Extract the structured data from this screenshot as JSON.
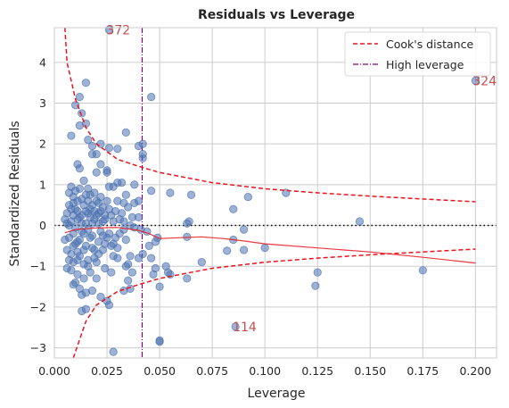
{
  "chart_data": {
    "type": "scatter",
    "title": "Residuals vs Leverage",
    "xlabel": "Leverage",
    "ylabel": "Standardized Residuals",
    "xlim": [
      0.0,
      0.21
    ],
    "ylim": [
      -3.25,
      4.85
    ],
    "xticks": [
      0.0,
      0.025,
      0.05,
      0.075,
      0.1,
      0.125,
      0.15,
      0.175,
      0.2
    ],
    "xtick_labels": [
      "0.000",
      "0.025",
      "0.050",
      "0.075",
      "0.100",
      "0.125",
      "0.150",
      "0.175",
      "0.200"
    ],
    "yticks": [
      -3,
      -2,
      -1,
      0,
      1,
      2,
      3,
      4
    ],
    "ytick_labels": [
      "−3",
      "−2",
      "−1",
      "0",
      "1",
      "2",
      "3",
      "4"
    ],
    "grid": true,
    "legend_position": "top-right",
    "legend": [
      "Cook's distance",
      "High leverage"
    ],
    "colors": {
      "points": "#4c72b0",
      "cooks": "#e8141e",
      "lowess": "#e8141e",
      "high_leverage": "#800080",
      "zero_line": "#000000",
      "annotation": "#c44e52",
      "grid": "#cccccc"
    },
    "high_leverage_x": 0.0417,
    "zero_line_y": 0,
    "cooks_distance_curves": {
      "upper": [
        [
          0.005,
          4.9
        ],
        [
          0.006,
          4.0
        ],
        [
          0.01,
          3.1
        ],
        [
          0.015,
          2.4
        ],
        [
          0.02,
          2.0
        ],
        [
          0.03,
          1.62
        ],
        [
          0.04,
          1.45
        ],
        [
          0.05,
          1.3
        ],
        [
          0.075,
          1.05
        ],
        [
          0.1,
          0.9
        ],
        [
          0.125,
          0.8
        ],
        [
          0.15,
          0.72
        ],
        [
          0.175,
          0.65
        ],
        [
          0.2,
          0.58
        ]
      ],
      "lower": [
        [
          0.009,
          -3.25
        ],
        [
          0.01,
          -3.1
        ],
        [
          0.015,
          -2.35
        ],
        [
          0.02,
          -1.95
        ],
        [
          0.03,
          -1.62
        ],
        [
          0.04,
          -1.45
        ],
        [
          0.05,
          -1.3
        ],
        [
          0.075,
          -1.05
        ],
        [
          0.1,
          -0.9
        ],
        [
          0.125,
          -0.8
        ],
        [
          0.15,
          -0.72
        ],
        [
          0.175,
          -0.65
        ],
        [
          0.2,
          -0.58
        ]
      ]
    },
    "lowess_curve": [
      [
        0.005,
        -0.18
      ],
      [
        0.01,
        -0.1
      ],
      [
        0.02,
        -0.06
      ],
      [
        0.03,
        -0.05
      ],
      [
        0.04,
        -0.12
      ],
      [
        0.045,
        -0.2
      ],
      [
        0.05,
        -0.32
      ],
      [
        0.06,
        -0.3
      ],
      [
        0.07,
        -0.28
      ],
      [
        0.08,
        -0.32
      ],
      [
        0.09,
        -0.38
      ],
      [
        0.1,
        -0.45
      ],
      [
        0.125,
        -0.55
      ],
      [
        0.15,
        -0.65
      ],
      [
        0.175,
        -0.78
      ],
      [
        0.2,
        -0.92
      ]
    ],
    "points": [
      [
        0.026,
        4.8
      ],
      [
        0.2,
        3.55
      ],
      [
        0.086,
        -2.48
      ],
      [
        0.015,
        3.5
      ],
      [
        0.046,
        3.15
      ],
      [
        0.012,
        3.15
      ],
      [
        0.01,
        2.95
      ],
      [
        0.013,
        2.75
      ],
      [
        0.015,
        2.5
      ],
      [
        0.012,
        2.45
      ],
      [
        0.008,
        2.2
      ],
      [
        0.016,
        2.1
      ],
      [
        0.018,
        1.95
      ],
      [
        0.022,
        2.0
      ],
      [
        0.034,
        2.28
      ],
      [
        0.026,
        1.9
      ],
      [
        0.03,
        1.88
      ],
      [
        0.04,
        1.95
      ],
      [
        0.042,
        2.0
      ],
      [
        0.042,
        1.75
      ],
      [
        0.042,
        1.65
      ],
      [
        0.018,
        1.75
      ],
      [
        0.02,
        1.75
      ],
      [
        0.011,
        1.5
      ],
      [
        0.012,
        1.4
      ],
      [
        0.02,
        1.3
      ],
      [
        0.022,
        1.5
      ],
      [
        0.025,
        1.35
      ],
      [
        0.025,
        1.3
      ],
      [
        0.026,
        0.95
      ],
      [
        0.028,
        0.95
      ],
      [
        0.03,
        1.05
      ],
      [
        0.032,
        1.05
      ],
      [
        0.038,
        1.0
      ],
      [
        0.04,
        0.6
      ],
      [
        0.046,
        0.85
      ],
      [
        0.055,
        0.8
      ],
      [
        0.065,
        0.75
      ],
      [
        0.085,
        0.4
      ],
      [
        0.092,
        0.7
      ],
      [
        0.11,
        0.8
      ],
      [
        0.145,
        0.1
      ],
      [
        0.064,
        0.1
      ],
      [
        0.063,
        0.05
      ],
      [
        0.09,
        -0.1
      ],
      [
        0.085,
        -0.35
      ],
      [
        0.09,
        -0.6
      ],
      [
        0.1,
        -0.55
      ],
      [
        0.082,
        -0.62
      ],
      [
        0.063,
        -0.28
      ],
      [
        0.07,
        -0.9
      ],
      [
        0.053,
        -1.0
      ],
      [
        0.055,
        -1.2
      ],
      [
        0.054,
        -1.15
      ],
      [
        0.047,
        -1.2
      ],
      [
        0.048,
        -1.05
      ],
      [
        0.046,
        -0.8
      ],
      [
        0.042,
        -0.7
      ],
      [
        0.04,
        -0.8
      ],
      [
        0.045,
        -0.5
      ],
      [
        0.048,
        -0.4
      ],
      [
        0.05,
        -1.5
      ],
      [
        0.063,
        -1.3
      ],
      [
        0.125,
        -1.15
      ],
      [
        0.124,
        -1.48
      ],
      [
        0.175,
        -1.1
      ],
      [
        0.035,
        -1.35
      ],
      [
        0.036,
        -1.55
      ],
      [
        0.033,
        -1.6
      ],
      [
        0.037,
        -1.15
      ],
      [
        0.034,
        -1.0
      ],
      [
        0.03,
        -0.8
      ],
      [
        0.028,
        -0.75
      ],
      [
        0.025,
        -1.85
      ],
      [
        0.026,
        -1.95
      ],
      [
        0.022,
        -1.75
      ],
      [
        0.018,
        -1.6
      ],
      [
        0.015,
        -1.65
      ],
      [
        0.013,
        -1.7
      ],
      [
        0.012,
        -1.55
      ],
      [
        0.013,
        -2.1
      ],
      [
        0.015,
        -2.05
      ],
      [
        0.028,
        -3.1
      ],
      [
        0.05,
        -2.82
      ],
      [
        0.05,
        -2.85
      ],
      [
        0.01,
        -1.4
      ],
      [
        0.008,
        -1.1
      ],
      [
        0.006,
        -1.05
      ],
      [
        0.009,
        -0.9
      ],
      [
        0.011,
        -0.85
      ],
      [
        0.014,
        -0.95
      ],
      [
        0.016,
        -1.0
      ],
      [
        0.019,
        -0.8
      ],
      [
        0.021,
        -0.7
      ],
      [
        0.023,
        -0.6
      ],
      [
        0.024,
        -0.45
      ],
      [
        0.027,
        -0.5
      ],
      [
        0.029,
        -0.3
      ],
      [
        0.031,
        -0.2
      ],
      [
        0.033,
        -0.1
      ],
      [
        0.036,
        0.0
      ],
      [
        0.038,
        -0.05
      ],
      [
        0.041,
        -0.1
      ],
      [
        0.044,
        -0.15
      ],
      [
        0.049,
        -0.3
      ],
      [
        0.007,
        0.8
      ],
      [
        0.009,
        0.7
      ],
      [
        0.011,
        0.6
      ],
      [
        0.012,
        0.9
      ],
      [
        0.014,
        1.1
      ],
      [
        0.016,
        0.9
      ],
      [
        0.017,
        0.75
      ],
      [
        0.019,
        0.8
      ],
      [
        0.021,
        0.55
      ],
      [
        0.023,
        0.45
      ],
      [
        0.025,
        0.6
      ],
      [
        0.027,
        0.25
      ],
      [
        0.029,
        0.35
      ],
      [
        0.031,
        0.15
      ],
      [
        0.033,
        0.1
      ],
      [
        0.035,
        0.45
      ],
      [
        0.037,
        0.2
      ],
      [
        0.006,
        0.3
      ],
      [
        0.007,
        -0.3
      ],
      [
        0.008,
        0.1
      ],
      [
        0.009,
        -0.2
      ],
      [
        0.01,
        0.4
      ],
      [
        0.011,
        -0.4
      ],
      [
        0.012,
        0.2
      ],
      [
        0.013,
        -0.15
      ],
      [
        0.014,
        0.5
      ],
      [
        0.015,
        -0.5
      ],
      [
        0.016,
        0.3
      ],
      [
        0.017,
        -0.3
      ],
      [
        0.018,
        0.05
      ],
      [
        0.019,
        -0.6
      ],
      [
        0.02,
        0.25
      ],
      [
        0.021,
        -0.4
      ],
      [
        0.022,
        0.35
      ],
      [
        0.023,
        -0.25
      ],
      [
        0.006,
        -0.6
      ],
      [
        0.007,
        0.5
      ],
      [
        0.008,
        -0.7
      ],
      [
        0.009,
        0.55
      ],
      [
        0.01,
        -0.45
      ],
      [
        0.011,
        0.15
      ],
      [
        0.012,
        -0.75
      ],
      [
        0.013,
        0.65
      ],
      [
        0.014,
        -0.2
      ],
      [
        0.015,
        0.05
      ],
      [
        0.016,
        -0.85
      ],
      [
        0.017,
        0.4
      ],
      [
        0.018,
        -0.55
      ],
      [
        0.005,
        0.15
      ],
      [
        0.005,
        -0.35
      ],
      [
        0.006,
        0.05
      ],
      [
        0.007,
        -0.85
      ],
      [
        0.008,
        0.95
      ],
      [
        0.009,
        0.25
      ],
      [
        0.01,
        -0.05
      ],
      [
        0.011,
        0.35
      ],
      [
        0.012,
        -0.35
      ],
      [
        0.013,
        0.25
      ],
      [
        0.014,
        -0.6
      ],
      [
        0.015,
        0.75
      ],
      [
        0.016,
        -0.1
      ],
      [
        0.017,
        0.2
      ],
      [
        0.018,
        -0.25
      ],
      [
        0.019,
        0.15
      ],
      [
        0.02,
        -0.9
      ],
      [
        0.021,
        0.05
      ],
      [
        0.022,
        -0.15
      ],
      [
        0.024,
        0.15
      ],
      [
        0.026,
        -0.2
      ],
      [
        0.028,
        0.1
      ],
      [
        0.03,
        -0.55
      ],
      [
        0.032,
        0.3
      ],
      [
        0.034,
        -0.35
      ],
      [
        0.036,
        -0.75
      ],
      [
        0.038,
        0.55
      ],
      [
        0.04,
        0.2
      ],
      [
        0.035,
        -0.95
      ],
      [
        0.027,
        -1.15
      ],
      [
        0.024,
        -1.05
      ],
      [
        0.02,
        -1.3
      ],
      [
        0.017,
        -1.15
      ],
      [
        0.014,
        -1.3
      ],
      [
        0.011,
        -1.2
      ],
      [
        0.009,
        -1.45
      ],
      [
        0.007,
        0.0
      ],
      [
        0.008,
        0.4
      ],
      [
        0.009,
        -0.5
      ],
      [
        0.01,
        0.85
      ],
      [
        0.011,
        -0.65
      ],
      [
        0.013,
        0.05
      ],
      [
        0.015,
        0.35
      ],
      [
        0.016,
        0.6
      ],
      [
        0.018,
        0.5
      ],
      [
        0.019,
        0.35
      ],
      [
        0.02,
        0.6
      ],
      [
        0.021,
        0.3
      ],
      [
        0.022,
        0.7
      ],
      [
        0.023,
        0.1
      ],
      [
        0.024,
        0.25
      ],
      [
        0.025,
        -0.3
      ],
      [
        0.026,
        0.4
      ],
      [
        0.028,
        -0.45
      ],
      [
        0.03,
        0.6
      ],
      [
        0.033,
        0.55
      ],
      [
        0.034,
        0.75
      ]
    ],
    "annotations": [
      {
        "label": "372",
        "x": 0.026,
        "y": 4.8
      },
      {
        "label": "324",
        "x": 0.2,
        "y": 3.55
      },
      {
        "label": "114",
        "x": 0.086,
        "y": -2.48
      }
    ]
  }
}
